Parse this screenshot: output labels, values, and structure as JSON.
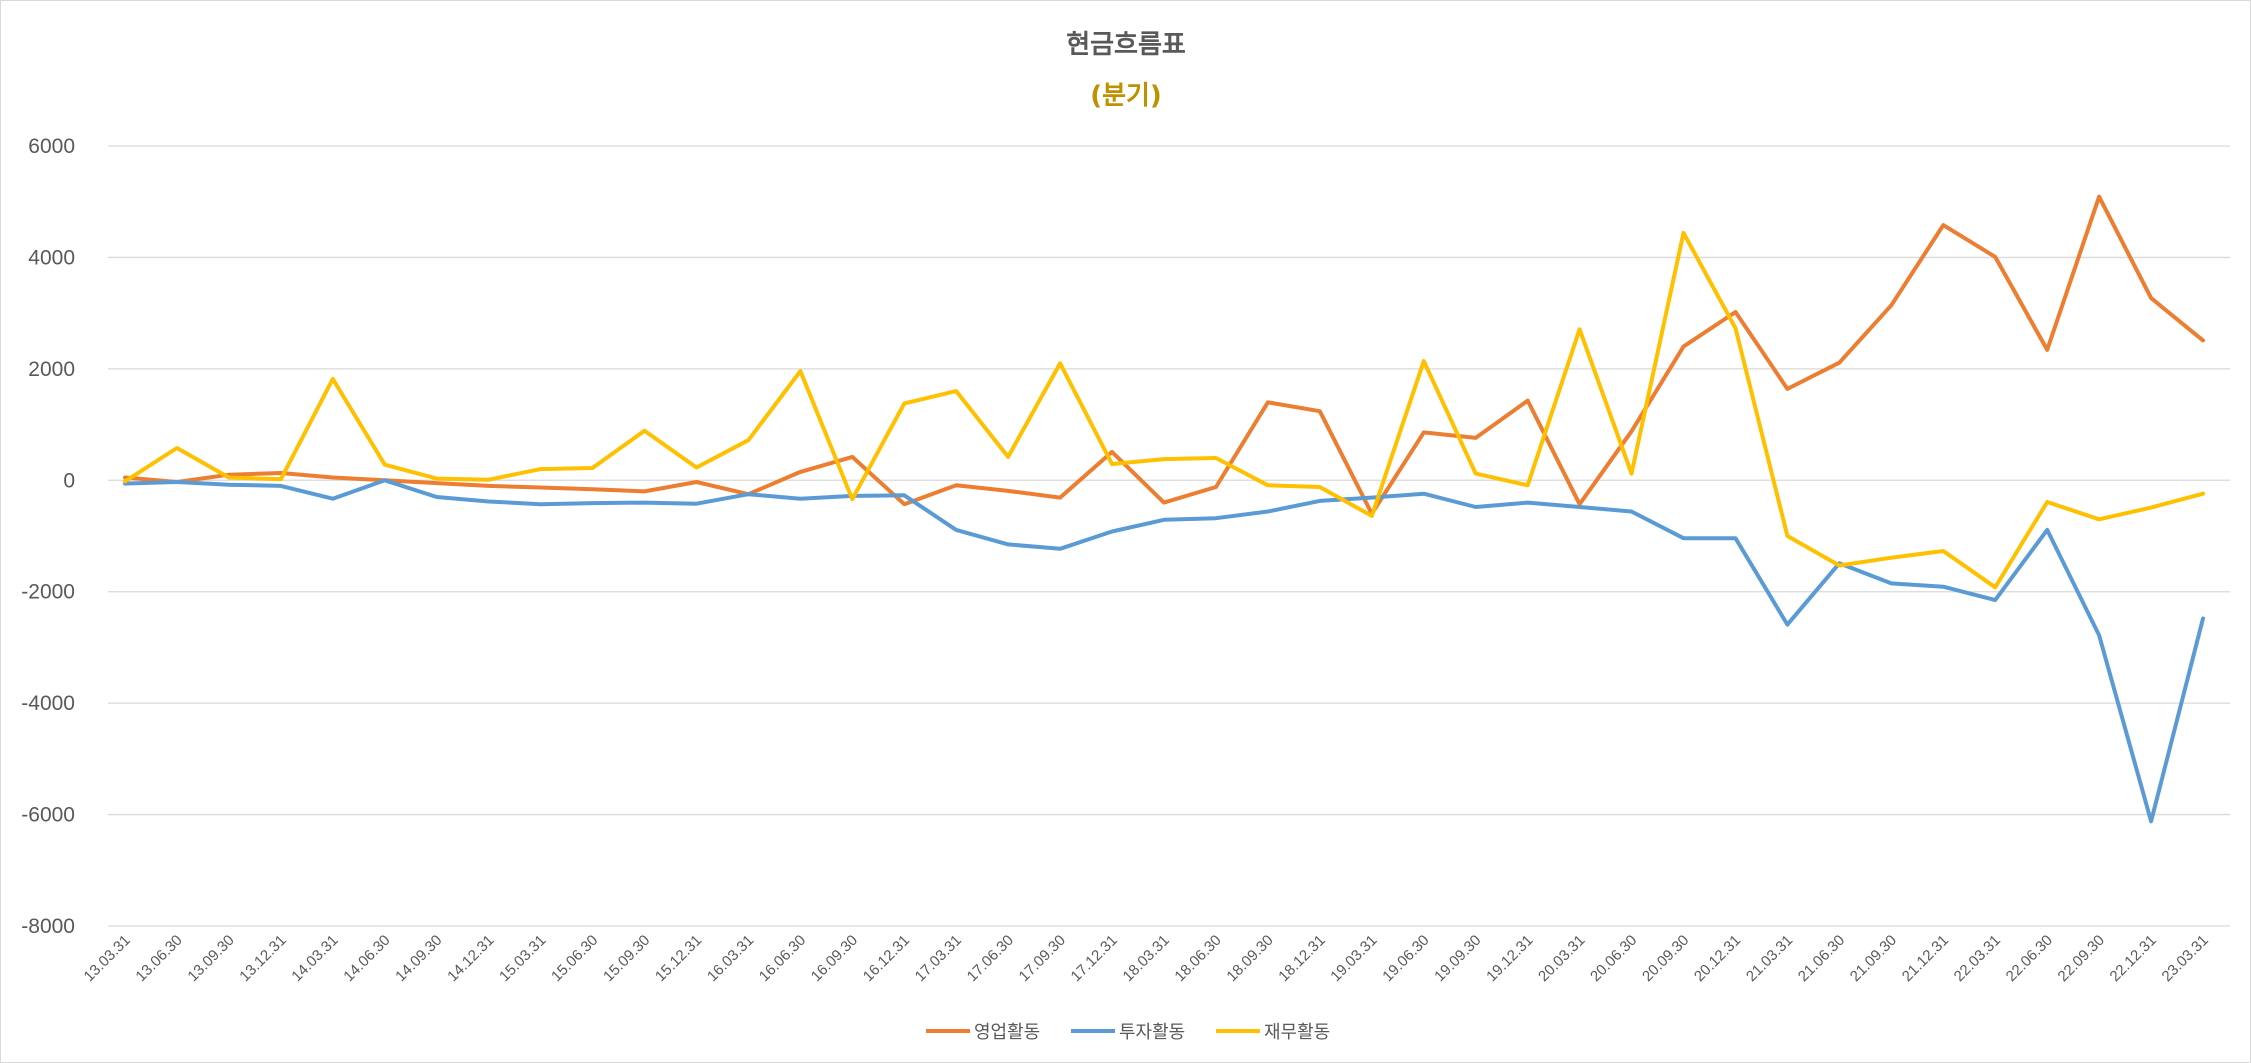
{
  "chart_data": {
    "type": "line",
    "title": "현금흐름표",
    "subtitle": "(분기)",
    "ylim": [
      -8000,
      6000
    ],
    "yticks": [
      6000,
      4000,
      2000,
      0,
      -2000,
      -4000,
      -6000,
      -8000
    ],
    "grid": true,
    "legend_position": "bottom",
    "categories": [
      "13.03.31",
      "13.06.30",
      "13.09.30",
      "13.12.31",
      "14.03.31",
      "14.06.30",
      "14.09.30",
      "14.12.31",
      "15.03.31",
      "15.06.30",
      "15.09.30",
      "15.12.31",
      "16.03.31",
      "16.06.30",
      "16.09.30",
      "16.12.31",
      "17.03.31",
      "17.06.30",
      "17.09.30",
      "17.12.31",
      "18.03.31",
      "18.06.30",
      "18.09.30",
      "18.12.31",
      "19.03.31",
      "19.06.30",
      "19.09.30",
      "19.12.31",
      "20.03.31",
      "20.06.30",
      "20.09.30",
      "20.12.31",
      "21.03.31",
      "21.06.30",
      "21.09.30",
      "21.12.31",
      "22.03.31",
      "22.06.30",
      "22.09.30",
      "22.12.31",
      "23.03.31"
    ],
    "series": [
      {
        "name": "영업활동",
        "color": "#ed7d31",
        "values": [
          50,
          -30,
          100,
          130,
          50,
          0,
          -50,
          -100,
          -130,
          -160,
          -200,
          -30,
          -250,
          150,
          420,
          -430,
          -90,
          -190,
          -310,
          510,
          -400,
          -120,
          1400,
          1240,
          -600,
          860,
          760,
          1430,
          -430,
          880,
          2400,
          3020,
          1640,
          2110,
          3140,
          4580,
          4010,
          2340,
          5090,
          3270,
          2510
        ]
      },
      {
        "name": "투자활동",
        "color": "#5b9bd5",
        "values": [
          -60,
          -30,
          -80,
          -100,
          -330,
          0,
          -300,
          -380,
          -430,
          -410,
          -400,
          -420,
          -250,
          -330,
          -280,
          -270,
          -890,
          -1150,
          -1230,
          -920,
          -710,
          -680,
          -560,
          -370,
          -310,
          -240,
          -480,
          -400,
          -480,
          -560,
          -1040,
          -1040,
          -2590,
          -1490,
          -1850,
          -1910,
          -2150,
          -890,
          -2780,
          -6120,
          -2480
        ]
      },
      {
        "name": "재무활동",
        "color": "#ffc000",
        "values": [
          -20,
          580,
          50,
          20,
          1820,
          280,
          30,
          10,
          200,
          220,
          890,
          230,
          720,
          1960,
          -340,
          1380,
          1600,
          420,
          2100,
          290,
          380,
          400,
          -90,
          -120,
          -640,
          2140,
          120,
          -90,
          2710,
          120,
          4440,
          2730,
          -1000,
          -1530,
          -1390,
          -1270,
          -1920,
          -390,
          -700,
          -490,
          -240
        ]
      }
    ]
  },
  "legend": {
    "items": [
      "영업활동",
      "투자활동",
      "재무활동"
    ]
  }
}
